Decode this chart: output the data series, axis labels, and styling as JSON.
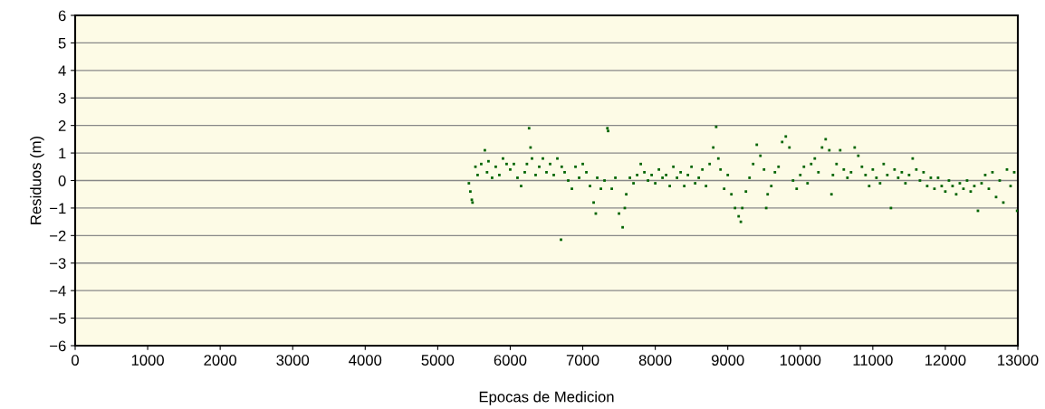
{
  "chart_data": {
    "type": "scatter",
    "xlabel": "Epocas de Medicion",
    "ylabel": "Residuos (m)",
    "x": [
      5430,
      5450,
      5470,
      5480,
      5520,
      5550,
      5600,
      5650,
      5680,
      5700,
      5750,
      5800,
      5850,
      5900,
      5950,
      6000,
      6050,
      6100,
      6150,
      6200,
      6230,
      6260,
      6280,
      6300,
      6350,
      6400,
      6450,
      6500,
      6550,
      6600,
      6650,
      6700,
      6710,
      6750,
      6800,
      6850,
      6900,
      6950,
      7000,
      7050,
      7100,
      7150,
      7180,
      7200,
      7250,
      7300,
      7340,
      7350,
      7400,
      7450,
      7500,
      7550,
      7580,
      7600,
      7650,
      7700,
      7750,
      7800,
      7850,
      7900,
      7950,
      8000,
      8050,
      8100,
      8150,
      8200,
      8250,
      8300,
      8350,
      8400,
      8450,
      8500,
      8550,
      8600,
      8650,
      8700,
      8750,
      8800,
      8840,
      8870,
      8900,
      8950,
      9000,
      9050,
      9100,
      9150,
      9180,
      9200,
      9250,
      9300,
      9350,
      9400,
      9450,
      9500,
      9530,
      9550,
      9600,
      9650,
      9700,
      9750,
      9800,
      9850,
      9900,
      9950,
      10000,
      10050,
      10100,
      10150,
      10200,
      10250,
      10300,
      10350,
      10400,
      10430,
      10450,
      10500,
      10550,
      10600,
      10650,
      10700,
      10750,
      10800,
      10850,
      10900,
      10950,
      11000,
      11050,
      11100,
      11150,
      11200,
      11250,
      11300,
      11350,
      11400,
      11450,
      11500,
      11550,
      11600,
      11650,
      11700,
      11750,
      11800,
      11850,
      11900,
      11950,
      12000,
      12050,
      12100,
      12150,
      12200,
      12250,
      12300,
      12350,
      12400,
      12450,
      12500,
      12550,
      12600,
      12650,
      12700,
      12750,
      12800,
      12850,
      12900,
      12950,
      12990
    ],
    "values": [
      -0.1,
      -0.4,
      -0.7,
      -0.8,
      0.5,
      0.2,
      0.6,
      1.1,
      0.3,
      0.7,
      0.1,
      0.5,
      0.2,
      0.8,
      0.6,
      0.4,
      0.6,
      0.1,
      -0.2,
      0.3,
      0.6,
      1.9,
      1.2,
      0.8,
      0.2,
      0.5,
      0.8,
      0.3,
      0.6,
      0.2,
      0.8,
      -2.15,
      0.5,
      0.3,
      0,
      -0.3,
      0.5,
      0.1,
      0.6,
      0.3,
      -0.2,
      -0.8,
      -1.2,
      0.1,
      -0.3,
      0,
      1.9,
      1.8,
      -0.3,
      0.1,
      -1.2,
      -1.7,
      -1,
      -0.5,
      0.1,
      -0.1,
      0.2,
      0.6,
      0.3,
      0,
      0.2,
      -0.1,
      0.4,
      0.1,
      0.2,
      -0.2,
      0.5,
      0.1,
      0.3,
      -0.2,
      0.2,
      0.5,
      -0.1,
      0.1,
      0.4,
      -0.2,
      0.6,
      1.2,
      1.95,
      0.8,
      0.4,
      -0.3,
      0.2,
      -0.5,
      -1,
      -1.3,
      -1.5,
      -1,
      -0.4,
      0.1,
      0.6,
      1.3,
      0.9,
      0.4,
      -1,
      -0.5,
      -0.2,
      0.3,
      0.5,
      1.4,
      1.6,
      1.2,
      0,
      -0.3,
      0.2,
      0.5,
      -0.1,
      0.6,
      0.8,
      0.3,
      1.2,
      1.5,
      1.1,
      -0.5,
      0.2,
      0.6,
      1.1,
      0.4,
      0.1,
      0.3,
      1.2,
      0.9,
      0.5,
      0.2,
      -0.2,
      0.4,
      0.1,
      -0.1,
      0.6,
      0.2,
      -1,
      0.4,
      0.1,
      0.3,
      -0.1,
      0.2,
      0.8,
      0.4,
      0,
      0.3,
      -0.2,
      0.1,
      -0.3,
      0.1,
      -0.2,
      -0.4,
      0,
      -0.2,
      -0.5,
      -0.1,
      -0.3,
      0,
      -0.4,
      -0.2,
      -1.1,
      -0.1,
      0.2,
      -0.3,
      0.3,
      -0.6,
      0,
      -0.8,
      0.4,
      -0.2,
      0.3,
      -1.1
    ],
    "color": "#006400",
    "marker": "square",
    "grid": "y",
    "xlim": [
      0,
      13000
    ],
    "xticks": [
      0,
      1000,
      2000,
      3000,
      4000,
      5000,
      6000,
      7000,
      8000,
      9000,
      10000,
      11000,
      12000,
      13000
    ],
    "ylim": [
      -6,
      6
    ],
    "yticks": [
      {
        "value": -6,
        "label": "−6"
      },
      {
        "value": -5,
        "label": "−5"
      },
      {
        "value": -4,
        "label": "−4"
      },
      {
        "value": -3,
        "label": "−3"
      },
      {
        "value": -2,
        "label": "−2"
      },
      {
        "value": -1,
        "label": "−1"
      },
      0,
      1,
      2,
      3,
      4,
      5,
      6
    ]
  }
}
